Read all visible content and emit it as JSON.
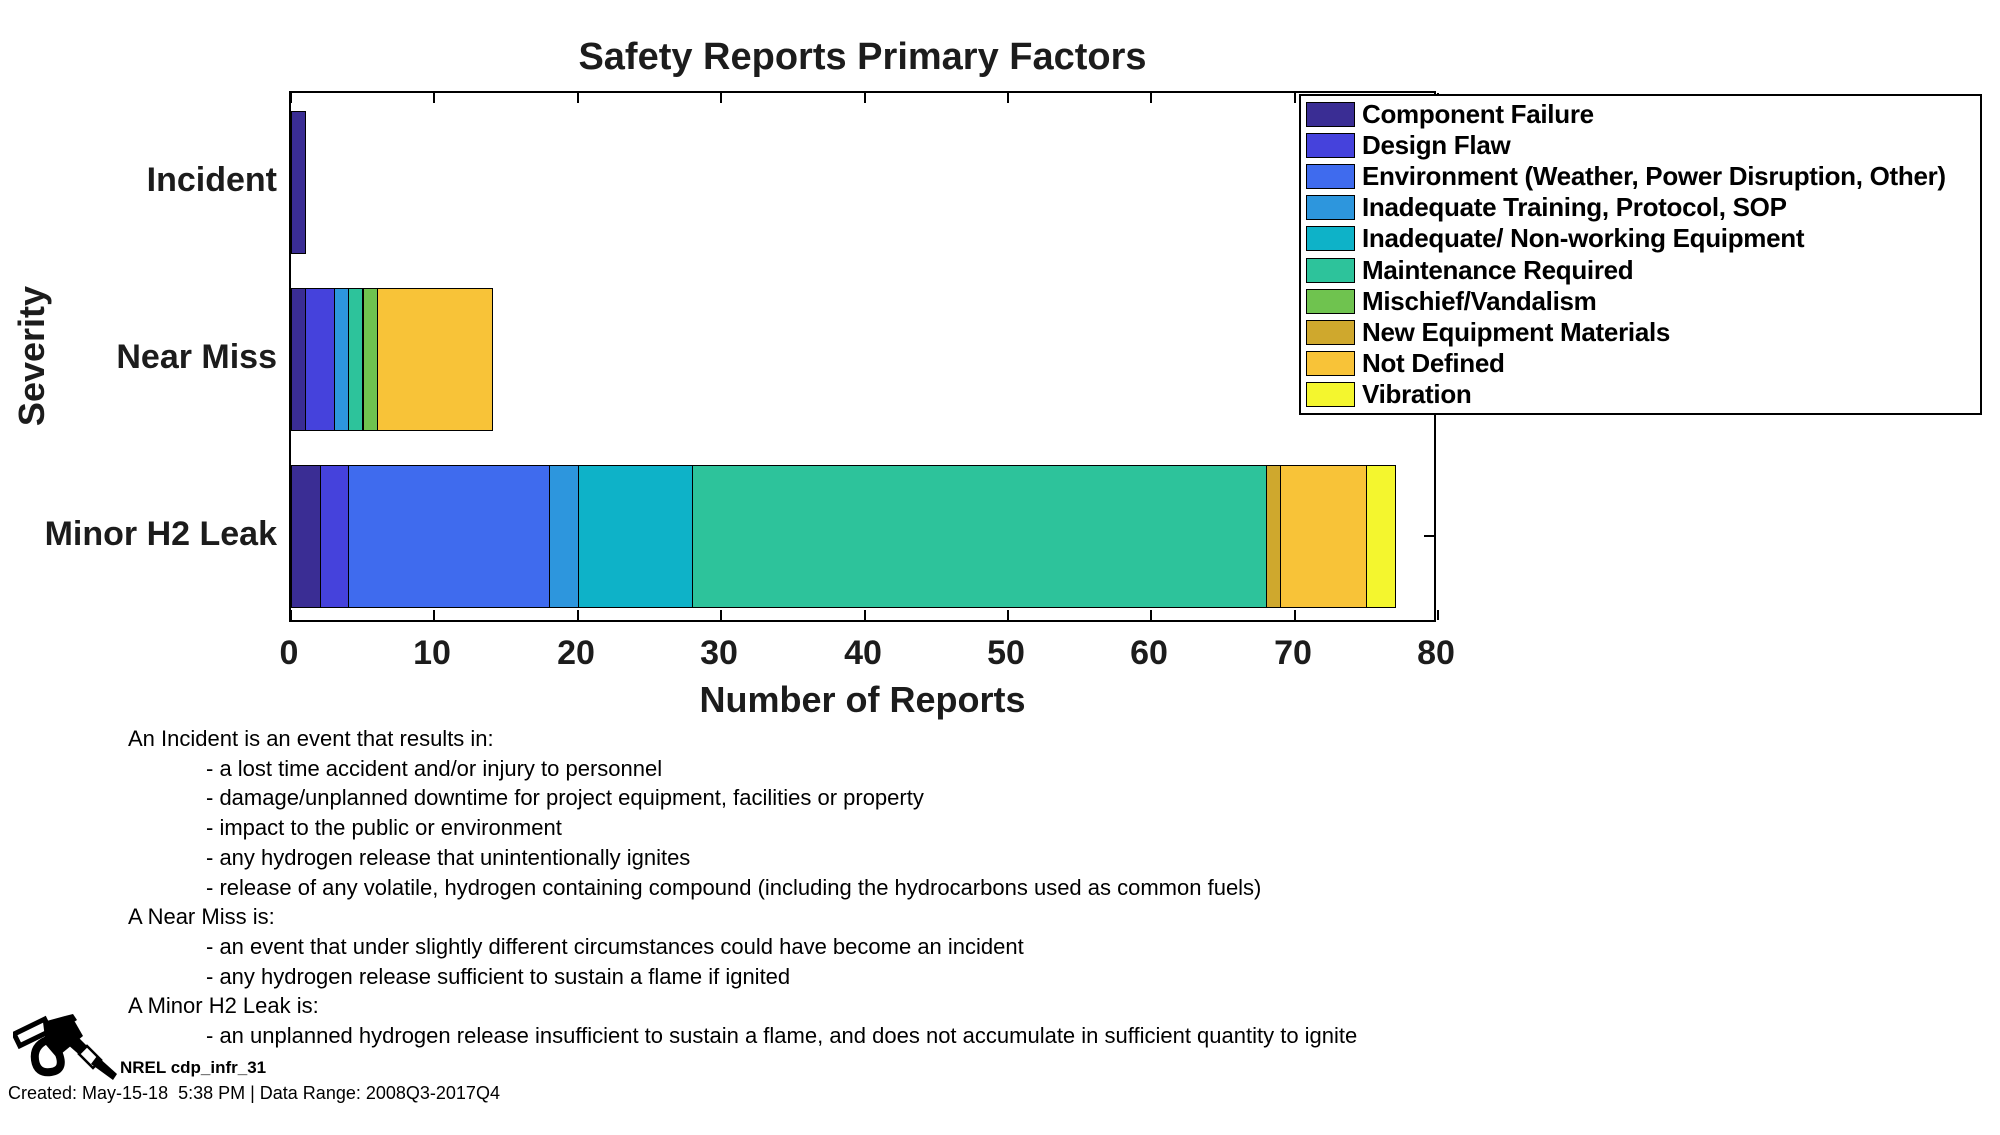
{
  "chart_data": {
    "type": "bar",
    "orientation": "horizontal",
    "stacked": true,
    "title": "Safety Reports Primary Factors",
    "xlabel": "Number of Reports",
    "ylabel": "Severity",
    "xlim": [
      0,
      80
    ],
    "xticks": [
      0,
      10,
      20,
      30,
      40,
      50,
      60,
      70,
      80
    ],
    "grid": false,
    "legend_position": "northeast",
    "categories": [
      "Incident",
      "Near Miss",
      "Minor H2 Leak"
    ],
    "totals": [
      1,
      14,
      77
    ],
    "series": [
      {
        "name": "Component Failure",
        "color": "#3A2D94",
        "values": [
          1,
          1,
          2
        ]
      },
      {
        "name": "Design Flaw",
        "color": "#4542DC",
        "values": [
          0,
          2,
          2
        ]
      },
      {
        "name": "Environment (Weather, Power Disruption, Other)",
        "color": "#3F6BEE",
        "values": [
          0,
          0,
          14
        ]
      },
      {
        "name": "Inadequate Training, Protocol, SOP",
        "color": "#2D96DD",
        "values": [
          0,
          1,
          2
        ]
      },
      {
        "name": "Inadequate/ Non-working Equipment",
        "color": "#0EB2C8",
        "values": [
          0,
          0,
          8
        ]
      },
      {
        "name": "Maintenance Required",
        "color": "#2DC39B",
        "values": [
          0,
          1,
          40
        ]
      },
      {
        "name": "Mischief/Vandalism",
        "color": "#6FC34F",
        "values": [
          0,
          1,
          0
        ]
      },
      {
        "name": "New Equipment Materials",
        "color": "#CFA82D",
        "values": [
          0,
          0,
          1
        ]
      },
      {
        "name": "Not Defined",
        "color": "#F8C338",
        "values": [
          0,
          8,
          6
        ]
      },
      {
        "name": "Vibration",
        "color": "#F4F62E",
        "values": [
          0,
          0,
          2
        ]
      }
    ]
  },
  "notes": {
    "lines": [
      {
        "text": "An Incident is an event that results in:",
        "indent": false
      },
      {
        "text": "- a lost time accident and/or injury to personnel",
        "indent": true
      },
      {
        "text": "- damage/unplanned downtime for project equipment, facilities or property",
        "indent": true
      },
      {
        "text": "- impact to the public or environment",
        "indent": true
      },
      {
        "text": "- any hydrogen release that unintentionally ignites",
        "indent": true
      },
      {
        "text": "- release of any volatile, hydrogen containing compound (including the hydrocarbons used as common fuels)",
        "indent": true
      },
      {
        "text": "A Near Miss is:",
        "indent": false
      },
      {
        "text": "- an event that under slightly different circumstances could have become an incident",
        "indent": true
      },
      {
        "text": "- any hydrogen release sufficient to sustain a flame if ignited",
        "indent": true
      },
      {
        "text": "A Minor H2 Leak is:",
        "indent": false
      },
      {
        "text": "- an unplanned hydrogen release insufficient to sustain a flame, and does not accumulate in sufficient quantity to ignite",
        "indent": true
      }
    ]
  },
  "credit": {
    "logo_icon": "fuel-nozzle-icon",
    "program_label": "NREL cdp_infr_31",
    "created_line": "Created: May-15-18  5:38 PM | Data Range: 2008Q3-2017Q4"
  }
}
